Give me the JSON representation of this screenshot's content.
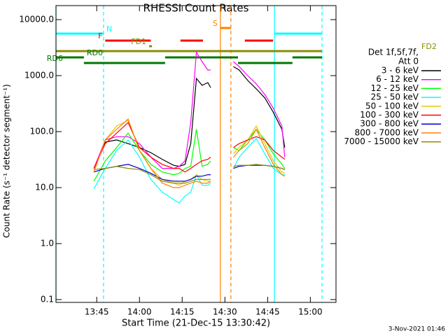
{
  "chart_data": {
    "type": "line",
    "title": "RHESSI Count Rates",
    "xlabel": "Start Time (21-Dec-15 13:30:42)",
    "ylabel": "Count Rate (s⁻¹ detector segment⁻¹)",
    "log_y": true,
    "xlim": [
      "13:30:42",
      "15:09"
    ],
    "xticks": [
      "13:45",
      "14:00",
      "14:15",
      "14:30",
      "14:45",
      "15:00"
    ],
    "ylim": [
      0.089,
      17800
    ],
    "yticks": [
      {
        "value": 0.1,
        "label": "0.1"
      },
      {
        "value": 1,
        "label": "1.0"
      },
      {
        "value": 10,
        "label": "10.0"
      },
      {
        "value": 100,
        "label": "100.0"
      },
      {
        "value": 1000,
        "label": "1000.0"
      },
      {
        "value": 10000,
        "label": "10000.0"
      }
    ],
    "legend_title": [
      "Det 1f,5f,7f,",
      "Att 0"
    ],
    "legend": "upper right outside",
    "footer": "3-Nov-2021 01:46",
    "x": [
      "13:44",
      "13:48",
      "13:52",
      "13:56",
      "14:00",
      "14:04",
      "14:08",
      "14:12",
      "14:14",
      "14:16",
      "14:18",
      "14:20",
      "14:22",
      "14:24",
      "14:25",
      "14:29",
      "14:33",
      "14:35",
      "14:38",
      "14:41",
      "14:44",
      "14:47",
      "14:50",
      "14:51"
    ],
    "series": [
      {
        "name": "3 - 6 keV",
        "color": "#000000",
        "values": [
          22,
          65,
          71,
          61,
          52,
          42,
          32,
          25,
          24,
          26,
          61,
          890,
          670,
          750,
          610,
          null,
          1450,
          1260,
          820,
          580,
          400,
          220,
          110,
          52
        ]
      },
      {
        "name": "6 - 12 keV",
        "color": "#ff00ff",
        "values": [
          22,
          71,
          81,
          81,
          61,
          35,
          22,
          22,
          24,
          30,
          145,
          2600,
          1780,
          1260,
          1260,
          null,
          1780,
          1450,
          1000,
          710,
          460,
          260,
          126,
          35
        ]
      },
      {
        "name": "12 - 25 keV",
        "color": "#00ff00",
        "values": [
          13,
          30,
          52,
          94,
          46,
          26,
          19,
          17,
          18,
          22,
          24,
          110,
          24,
          26,
          30,
          null,
          52,
          46,
          71,
          110,
          71,
          40,
          26,
          22
        ]
      },
      {
        "name": "25 - 50 keV",
        "color": "#00ffff",
        "values": [
          9.5,
          22,
          46,
          71,
          35,
          14,
          8.3,
          6.1,
          5.3,
          7.1,
          8.3,
          17,
          11,
          11,
          12,
          null,
          22,
          35,
          52,
          75,
          40,
          22,
          17,
          17
        ]
      },
      {
        "name": "50 - 100 keV",
        "color": "#e6c800",
        "values": [
          19,
          71,
          126,
          158,
          46,
          22,
          14,
          12,
          11,
          13,
          14,
          17,
          14,
          13,
          13,
          null,
          40,
          52,
          71,
          126,
          61,
          30,
          19,
          18
        ]
      },
      {
        "name": "100 - 300 keV",
        "color": "#ff0000",
        "values": [
          22,
          61,
          94,
          145,
          52,
          35,
          26,
          22,
          22,
          19,
          22,
          26,
          30,
          32,
          35,
          null,
          52,
          61,
          71,
          81,
          71,
          46,
          35,
          32
        ]
      },
      {
        "name": "300 - 800 keV",
        "color": "#0000cc",
        "values": [
          19,
          22,
          24,
          26,
          22,
          18,
          14,
          13,
          13,
          13,
          14,
          16,
          16,
          17,
          17,
          null,
          22,
          24,
          25,
          25,
          25,
          24,
          22,
          21
        ]
      },
      {
        "name": "800 - 7000 keV",
        "color": "#ff8000",
        "values": [
          19,
          71,
          110,
          168,
          46,
          22,
          12,
          10,
          10,
          11,
          12,
          13,
          12,
          12,
          13,
          null,
          35,
          46,
          61,
          110,
          52,
          26,
          17,
          16
        ]
      },
      {
        "name": "7000 - 15000 keV",
        "color": "#8b8b00",
        "values": [
          21,
          22,
          24,
          22,
          21,
          17,
          13,
          12,
          12,
          12,
          13,
          14,
          14,
          14,
          14,
          null,
          24,
          25,
          25,
          26,
          25,
          24,
          22,
          21
        ]
      }
    ],
    "flags": [
      {
        "label": "N",
        "color": "#00ffff",
        "spans": [
          [
            "13:30:42",
            "13:47:24"
          ],
          [
            "14:47:24",
            "15:04:06"
          ]
        ]
      },
      {
        "label": "F",
        "color": "#ff0000",
        "spans": [
          [
            "13:48",
            "14:04"
          ],
          [
            "14:14:24",
            "14:22:18"
          ],
          [
            "14:37",
            "14:46:54"
          ]
        ]
      },
      {
        "label": "S",
        "color": "#ff8000",
        "spans": [
          [
            "14:28:24",
            "14:32:06"
          ]
        ]
      },
      {
        "label": "FD1",
        "color": "#8b8b00",
        "spans": [
          [
            "14:03:24",
            "14:04:24"
          ]
        ]
      },
      {
        "label": "FD2",
        "color": "#8b8b00",
        "spans": [
          [
            "13:30:42",
            "15:04:06"
          ]
        ]
      },
      {
        "label": "RD0",
        "color": "#007700",
        "spans": [
          [
            "13:30:42",
            "13:40:30"
          ],
          [
            "14:09",
            "14:34:36"
          ],
          [
            "14:53:42",
            "15:04:06"
          ]
        ]
      },
      {
        "label": "RD6",
        "color": "#007700",
        "spans": [
          [
            "13:40:30",
            "14:09"
          ],
          [
            "14:34:36",
            "14:53:42"
          ]
        ]
      }
    ],
    "vlines": [
      {
        "x": "13:30:42",
        "color": "#00ffff",
        "dashed": false
      },
      {
        "x": "13:47:24",
        "color": "#00ffff",
        "dashed": true
      },
      {
        "x": "14:47:24",
        "color": "#00ffff",
        "dashed": false
      },
      {
        "x": "15:04:06",
        "color": "#00ffff",
        "dashed": true
      },
      {
        "x": "14:28:24",
        "color": "#ff8000",
        "dashed": false
      },
      {
        "x": "14:32:06",
        "color": "#ff8000",
        "dashed": true
      }
    ]
  }
}
